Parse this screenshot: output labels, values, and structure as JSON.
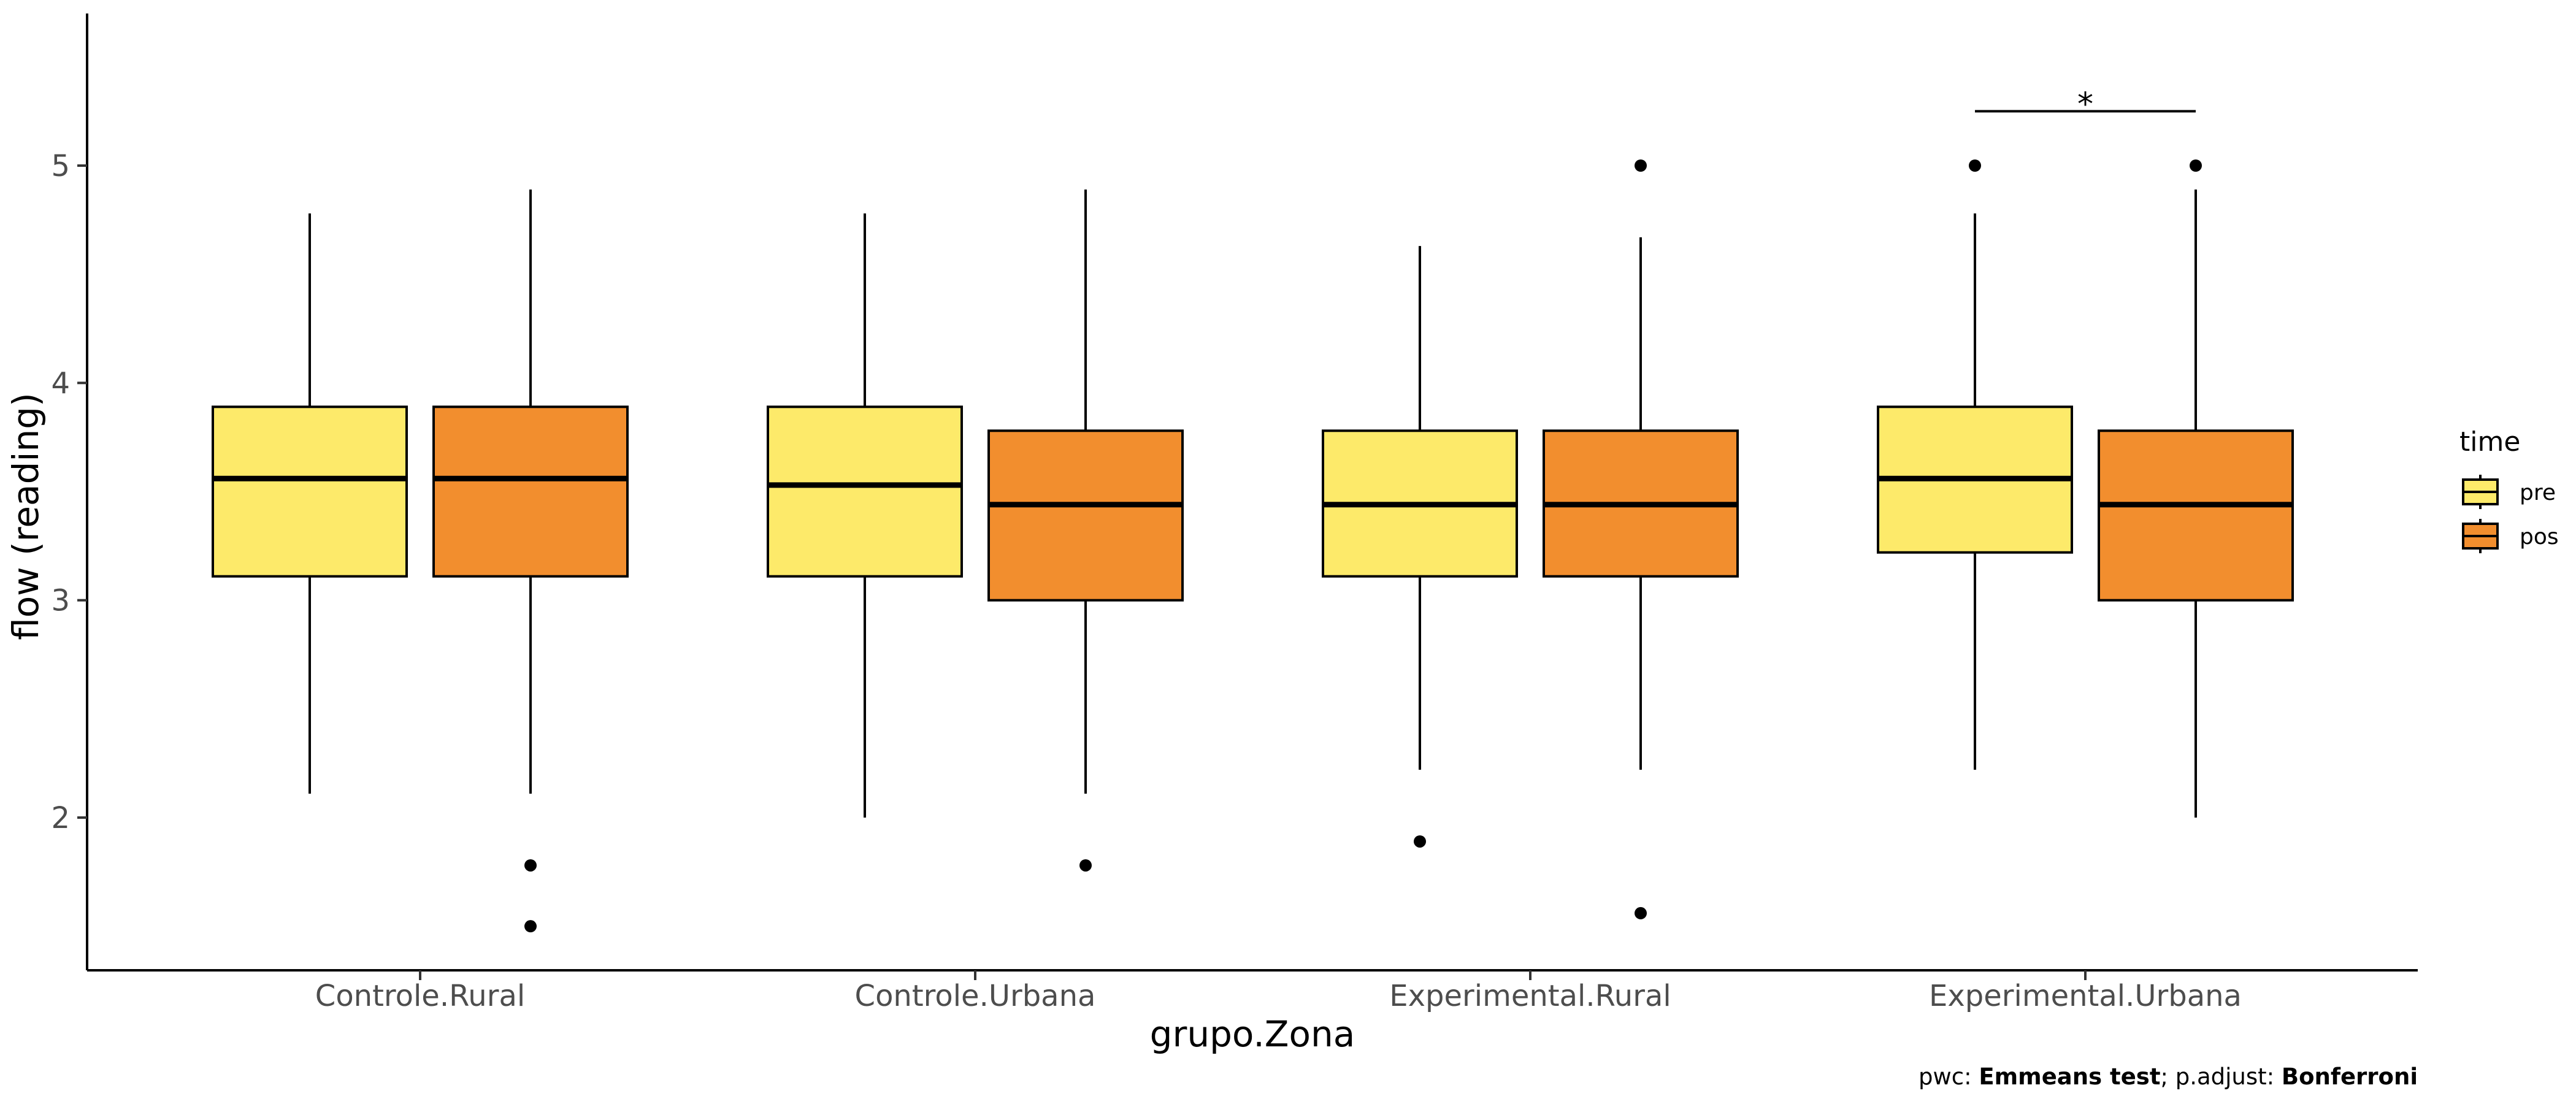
{
  "chart_data": {
    "type": "boxplot",
    "xlabel": "grupo.Zona",
    "ylabel": "flow (reading)",
    "ylim": [
      1.3,
      5.7
    ],
    "yticks": [
      2,
      3,
      4,
      5
    ],
    "ytick_labels": [
      "2",
      "3",
      "4",
      "5"
    ],
    "categories": [
      "Controle.Rural",
      "Controle.Urbana",
      "Experimental.Rural",
      "Experimental.Urbana"
    ],
    "grid": false,
    "legend": {
      "title": "time",
      "placement": "right",
      "entries": [
        {
          "label": "pre",
          "color": "#FDEA6A"
        },
        {
          "label": "pos",
          "color": "#F28E2E"
        }
      ]
    },
    "series": [
      {
        "name": "pre",
        "color": "#FDEA6A",
        "boxes": [
          {
            "category": "Controle.Rural",
            "whisker_low": 2.11,
            "q1": 3.11,
            "median": 3.56,
            "q3": 3.89,
            "whisker_high": 4.78,
            "outliers": []
          },
          {
            "category": "Controle.Urbana",
            "whisker_low": 2.0,
            "q1": 3.11,
            "median": 3.53,
            "q3": 3.89,
            "whisker_high": 4.78,
            "outliers": []
          },
          {
            "category": "Experimental.Rural",
            "whisker_low": 2.22,
            "q1": 3.11,
            "median": 3.44,
            "q3": 3.78,
            "whisker_high": 4.63,
            "outliers": [
              1.89
            ]
          },
          {
            "category": "Experimental.Urbana",
            "whisker_low": 2.22,
            "q1": 3.22,
            "median": 3.56,
            "q3": 3.89,
            "whisker_high": 4.78,
            "outliers": [
              5.0
            ]
          }
        ]
      },
      {
        "name": "pos",
        "color": "#F28E2E",
        "boxes": [
          {
            "category": "Controle.Rural",
            "whisker_low": 2.11,
            "q1": 3.11,
            "median": 3.56,
            "q3": 3.89,
            "whisker_high": 4.89,
            "outliers": [
              1.78,
              1.5
            ]
          },
          {
            "category": "Controle.Urbana",
            "whisker_low": 2.11,
            "q1": 3.0,
            "median": 3.44,
            "q3": 3.78,
            "whisker_high": 4.89,
            "outliers": [
              1.78
            ]
          },
          {
            "category": "Experimental.Rural",
            "whisker_low": 2.22,
            "q1": 3.11,
            "median": 3.44,
            "q3": 3.78,
            "whisker_high": 4.67,
            "outliers": [
              5.0,
              1.56
            ]
          },
          {
            "category": "Experimental.Urbana",
            "whisker_low": 2.0,
            "q1": 3.0,
            "median": 3.44,
            "q3": 3.78,
            "whisker_high": 4.89,
            "outliers": [
              5.0
            ]
          }
        ]
      }
    ],
    "annotations": [
      {
        "category": "Experimental.Urbana",
        "from": "pre",
        "to": "pos",
        "y": 5.25,
        "label": "*"
      }
    ],
    "caption": {
      "parts": [
        {
          "text": "pwc: ",
          "bold": false
        },
        {
          "text": "Emmeans test",
          "bold": true
        },
        {
          "text": "; p.adjust: ",
          "bold": false
        },
        {
          "text": "Bonferroni",
          "bold": true
        }
      ]
    }
  }
}
